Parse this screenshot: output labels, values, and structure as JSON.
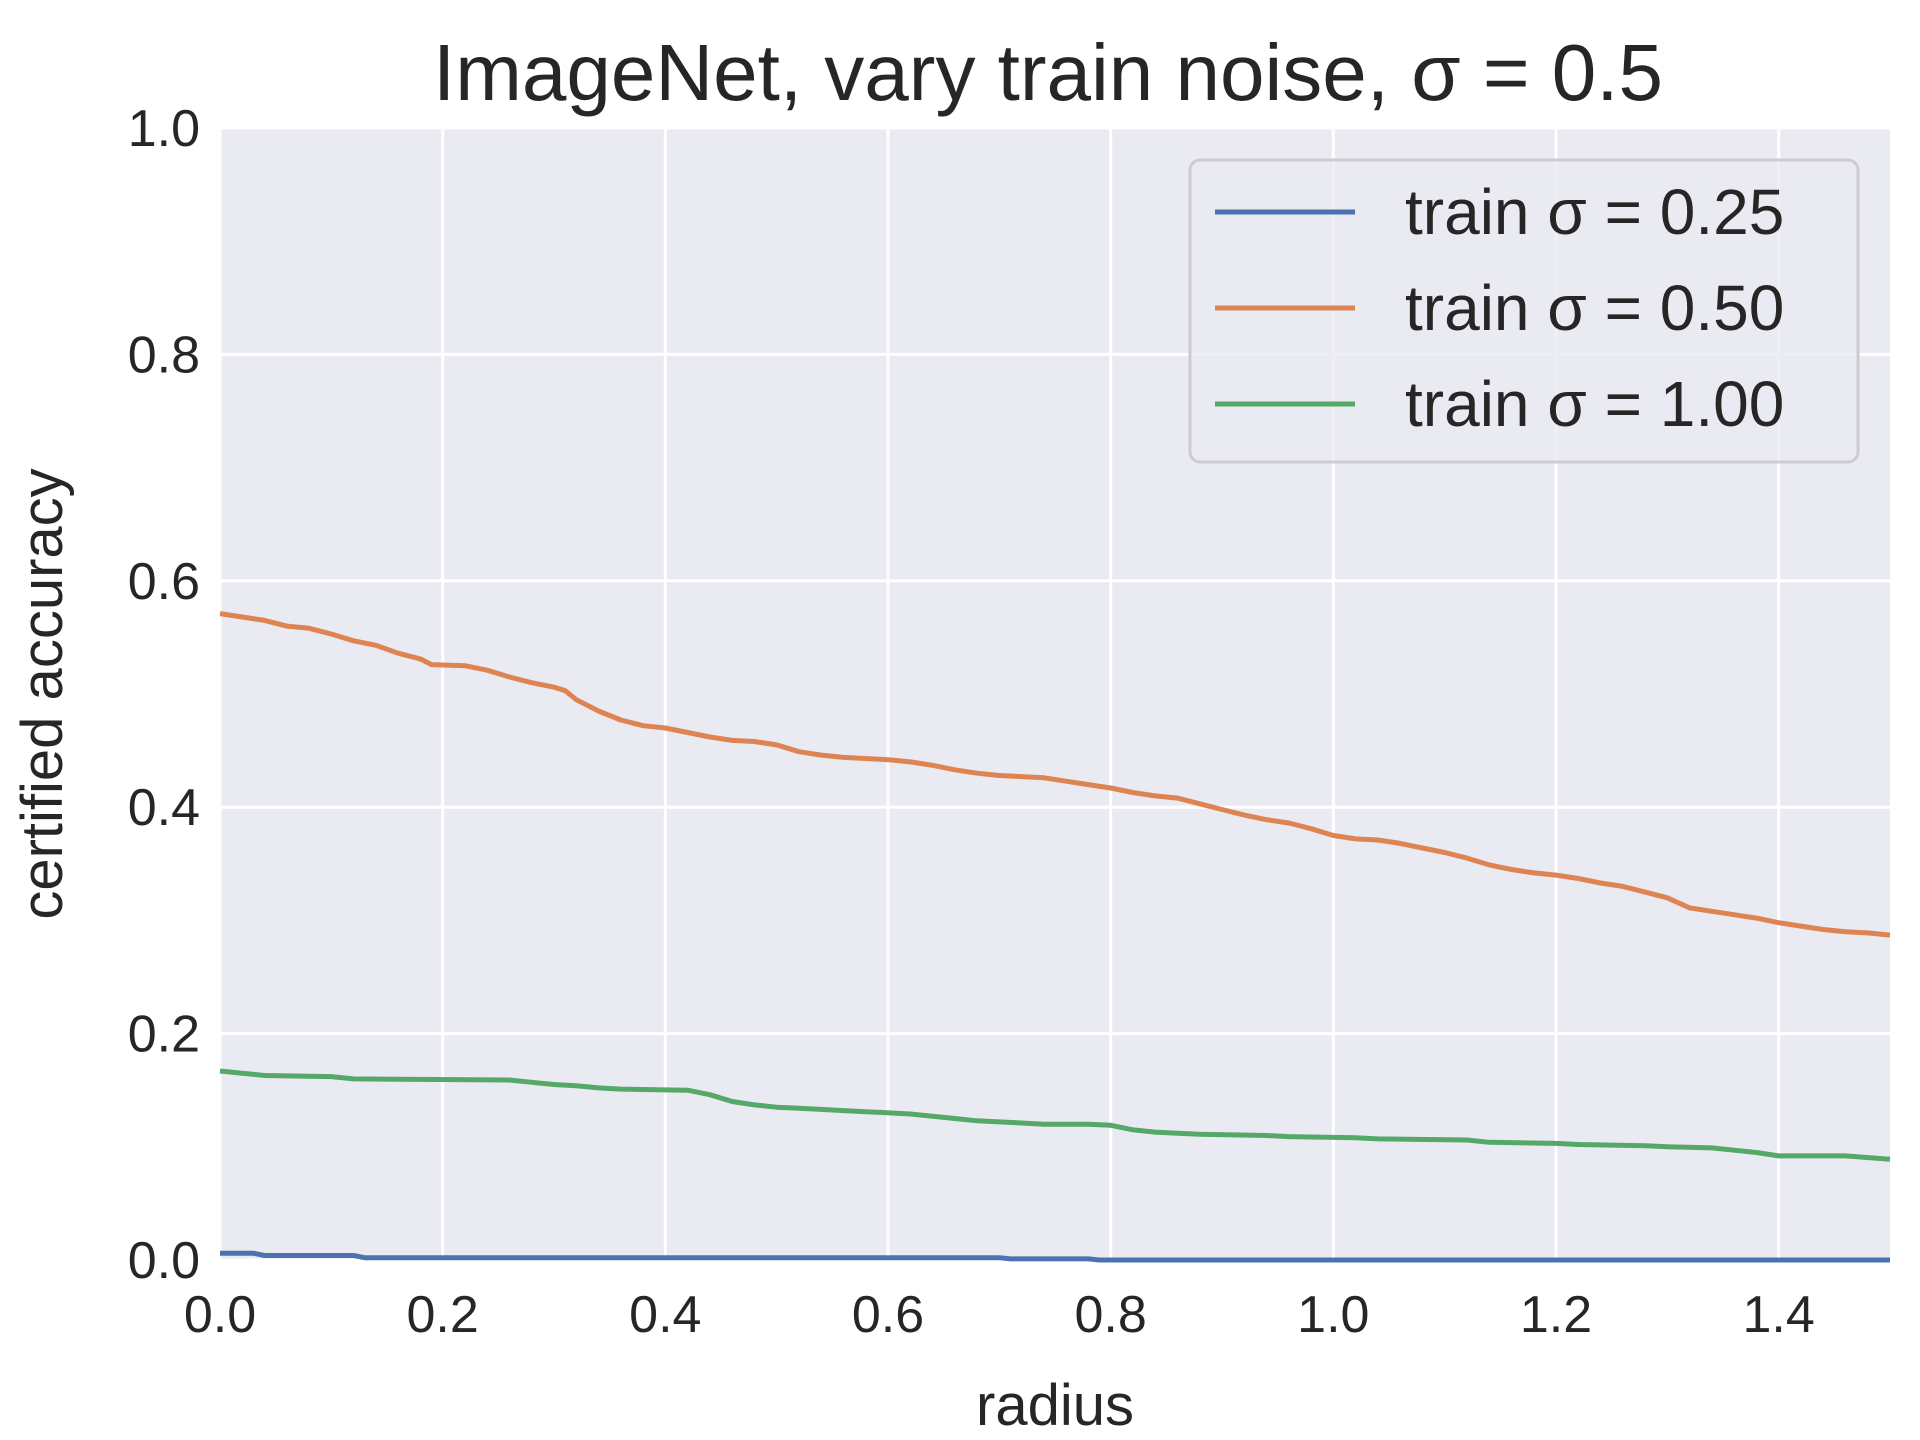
{
  "chart_data": {
    "type": "line",
    "title": "ImageNet, vary train noise, σ = 0.5",
    "xlabel": "radius",
    "ylabel": "certified accuracy",
    "xlim": [
      0.0,
      1.5
    ],
    "ylim": [
      0.0,
      1.0
    ],
    "xticks": [
      "0.0",
      "0.2",
      "0.4",
      "0.6",
      "0.8",
      "1.0",
      "1.2",
      "1.4"
    ],
    "yticks": [
      "0.0",
      "0.2",
      "0.4",
      "0.6",
      "0.8",
      "1.0"
    ],
    "grid": true,
    "legend_position": "top-right",
    "background": "#eaeaf2",
    "series": [
      {
        "name": "train σ = 0.25",
        "color": "#4c72b0",
        "x": [
          0.0,
          0.03,
          0.04,
          0.12,
          0.13,
          0.7,
          0.71,
          0.78,
          0.79,
          1.5
        ],
        "y": [
          0.006,
          0.006,
          0.004,
          0.004,
          0.002,
          0.002,
          0.001,
          0.001,
          0.0,
          0.0
        ]
      },
      {
        "name": "train σ = 0.50",
        "color": "#dd8452",
        "x": [
          0.0,
          0.02,
          0.04,
          0.06,
          0.08,
          0.1,
          0.12,
          0.14,
          0.16,
          0.18,
          0.19,
          0.22,
          0.24,
          0.26,
          0.28,
          0.3,
          0.31,
          0.32,
          0.34,
          0.36,
          0.38,
          0.4,
          0.42,
          0.44,
          0.46,
          0.48,
          0.5,
          0.52,
          0.54,
          0.56,
          0.58,
          0.6,
          0.62,
          0.64,
          0.66,
          0.68,
          0.7,
          0.72,
          0.74,
          0.76,
          0.78,
          0.8,
          0.82,
          0.84,
          0.86,
          0.88,
          0.9,
          0.92,
          0.94,
          0.96,
          0.98,
          1.0,
          1.02,
          1.04,
          1.06,
          1.08,
          1.1,
          1.12,
          1.14,
          1.16,
          1.18,
          1.2,
          1.22,
          1.24,
          1.26,
          1.28,
          1.3,
          1.32,
          1.34,
          1.36,
          1.38,
          1.4,
          1.42,
          1.44,
          1.46,
          1.48,
          1.5
        ],
        "y": [
          0.571,
          0.568,
          0.565,
          0.56,
          0.558,
          0.553,
          0.547,
          0.543,
          0.536,
          0.531,
          0.526,
          0.525,
          0.521,
          0.515,
          0.51,
          0.506,
          0.503,
          0.495,
          0.485,
          0.477,
          0.472,
          0.47,
          0.466,
          0.462,
          0.459,
          0.458,
          0.455,
          0.449,
          0.446,
          0.444,
          0.443,
          0.442,
          0.44,
          0.437,
          0.433,
          0.43,
          0.428,
          0.427,
          0.426,
          0.423,
          0.42,
          0.417,
          0.413,
          0.41,
          0.408,
          0.403,
          0.398,
          0.393,
          0.389,
          0.386,
          0.381,
          0.375,
          0.372,
          0.371,
          0.368,
          0.364,
          0.36,
          0.355,
          0.349,
          0.345,
          0.342,
          0.34,
          0.337,
          0.333,
          0.33,
          0.325,
          0.32,
          0.311,
          0.308,
          0.305,
          0.302,
          0.298,
          0.295,
          0.292,
          0.29,
          0.289,
          0.287
        ]
      },
      {
        "name": "train σ = 1.00",
        "color": "#55a868",
        "x": [
          0.0,
          0.02,
          0.04,
          0.1,
          0.12,
          0.26,
          0.28,
          0.3,
          0.32,
          0.34,
          0.36,
          0.42,
          0.44,
          0.46,
          0.48,
          0.5,
          0.52,
          0.54,
          0.56,
          0.58,
          0.6,
          0.62,
          0.64,
          0.66,
          0.68,
          0.7,
          0.72,
          0.74,
          0.76,
          0.78,
          0.8,
          0.82,
          0.84,
          0.86,
          0.88,
          0.94,
          0.96,
          1.02,
          1.04,
          1.12,
          1.14,
          1.2,
          1.22,
          1.28,
          1.3,
          1.34,
          1.36,
          1.38,
          1.4,
          1.46,
          1.5
        ],
        "y": [
          0.167,
          0.165,
          0.163,
          0.162,
          0.16,
          0.159,
          0.157,
          0.155,
          0.154,
          0.152,
          0.151,
          0.15,
          0.146,
          0.14,
          0.137,
          0.135,
          0.134,
          0.133,
          0.132,
          0.131,
          0.13,
          0.129,
          0.127,
          0.125,
          0.123,
          0.122,
          0.121,
          0.12,
          0.12,
          0.12,
          0.119,
          0.115,
          0.113,
          0.112,
          0.111,
          0.11,
          0.109,
          0.108,
          0.107,
          0.106,
          0.104,
          0.103,
          0.102,
          0.101,
          0.1,
          0.099,
          0.097,
          0.095,
          0.092,
          0.092,
          0.089
        ]
      }
    ]
  }
}
